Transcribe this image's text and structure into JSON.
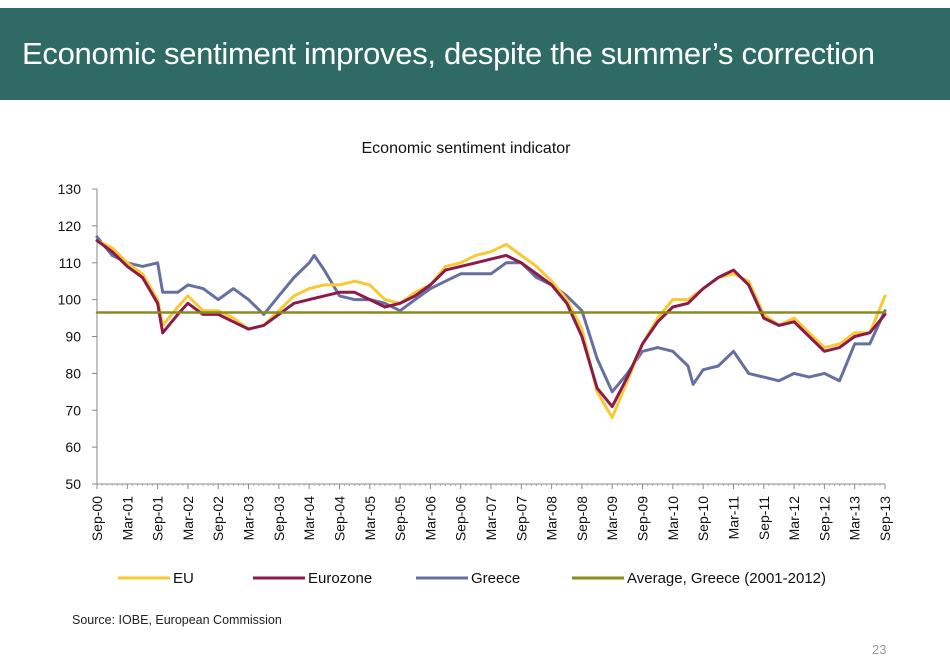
{
  "header": {
    "title": "Economic sentiment improves, despite the summer’s correction",
    "background": "#2f6b64"
  },
  "source": "Source: IOBE, European Commission",
  "page_number": "23",
  "chart_data": {
    "type": "line",
    "title": "Economic sentiment indicator",
    "xlabel": "",
    "ylabel": "",
    "ylim": [
      50,
      130
    ],
    "yticks": [
      50,
      60,
      70,
      80,
      90,
      100,
      110,
      120,
      130
    ],
    "grid": false,
    "legend_placement": "bottom",
    "x_start": "2000-09",
    "x_end": "2013-09",
    "x_ticks": [
      "Sep-00",
      "Mar-01",
      "Sep-01",
      "Mar-02",
      "Sep-02",
      "Mar-03",
      "Sep-03",
      "Mar-04",
      "Sep-04",
      "Mar-05",
      "Sep-05",
      "Mar-06",
      "Sep-06",
      "Mar-07",
      "Sep-07",
      "Mar-08",
      "Sep-08",
      "Mar-09",
      "Sep-09",
      "Mar-10",
      "Sep-10",
      "Mar-11",
      "Sep-11",
      "Mar-12",
      "Sep-12",
      "Mar-13",
      "Sep-13"
    ],
    "series": [
      {
        "name": "EU",
        "color": "#f9c832",
        "points": [
          [
            "2000-09",
            116
          ],
          [
            "2000-12",
            114
          ],
          [
            "2001-03",
            110
          ],
          [
            "2001-06",
            107
          ],
          [
            "2001-09",
            100
          ],
          [
            "2001-10",
            93
          ],
          [
            "2002-01",
            98
          ],
          [
            "2002-03",
            101
          ],
          [
            "2002-06",
            97
          ],
          [
            "2002-09",
            97
          ],
          [
            "2002-12",
            95
          ],
          [
            "2003-03",
            92
          ],
          [
            "2003-06",
            93
          ],
          [
            "2003-09",
            97
          ],
          [
            "2003-12",
            101
          ],
          [
            "2004-03",
            103
          ],
          [
            "2004-06",
            104
          ],
          [
            "2004-09",
            104
          ],
          [
            "2004-12",
            105
          ],
          [
            "2005-03",
            104
          ],
          [
            "2005-06",
            100
          ],
          [
            "2005-09",
            99
          ],
          [
            "2005-12",
            102
          ],
          [
            "2006-03",
            104
          ],
          [
            "2006-06",
            109
          ],
          [
            "2006-09",
            110
          ],
          [
            "2006-12",
            112
          ],
          [
            "2007-03",
            113
          ],
          [
            "2007-06",
            115
          ],
          [
            "2007-09",
            112
          ],
          [
            "2007-12",
            109
          ],
          [
            "2008-03",
            105
          ],
          [
            "2008-06",
            100
          ],
          [
            "2008-09",
            92
          ],
          [
            "2008-12",
            75
          ],
          [
            "2009-03",
            68
          ],
          [
            "2009-06",
            78
          ],
          [
            "2009-09",
            88
          ],
          [
            "2009-12",
            95
          ],
          [
            "2010-03",
            100
          ],
          [
            "2010-06",
            100
          ],
          [
            "2010-09",
            103
          ],
          [
            "2010-12",
            106
          ],
          [
            "2011-03",
            107
          ],
          [
            "2011-06",
            105
          ],
          [
            "2011-09",
            96
          ],
          [
            "2011-12",
            93
          ],
          [
            "2012-03",
            95
          ],
          [
            "2012-06",
            91
          ],
          [
            "2012-09",
            87
          ],
          [
            "2012-12",
            88
          ],
          [
            "2013-03",
            91
          ],
          [
            "2013-06",
            91
          ],
          [
            "2013-09",
            101
          ]
        ]
      },
      {
        "name": "Eurozone",
        "color": "#8c1a4a",
        "points": [
          [
            "2000-09",
            116
          ],
          [
            "2000-12",
            113
          ],
          [
            "2001-03",
            109
          ],
          [
            "2001-06",
            106
          ],
          [
            "2001-09",
            99
          ],
          [
            "2001-10",
            91
          ],
          [
            "2002-01",
            96
          ],
          [
            "2002-03",
            99
          ],
          [
            "2002-06",
            96
          ],
          [
            "2002-09",
            96
          ],
          [
            "2002-12",
            94
          ],
          [
            "2003-03",
            92
          ],
          [
            "2003-06",
            93
          ],
          [
            "2003-09",
            96
          ],
          [
            "2003-12",
            99
          ],
          [
            "2004-03",
            100
          ],
          [
            "2004-06",
            101
          ],
          [
            "2004-09",
            102
          ],
          [
            "2004-12",
            102
          ],
          [
            "2005-03",
            100
          ],
          [
            "2005-06",
            98
          ],
          [
            "2005-09",
            99
          ],
          [
            "2005-12",
            101
          ],
          [
            "2006-03",
            104
          ],
          [
            "2006-06",
            108
          ],
          [
            "2006-09",
            109
          ],
          [
            "2006-12",
            110
          ],
          [
            "2007-03",
            111
          ],
          [
            "2007-06",
            112
          ],
          [
            "2007-09",
            110
          ],
          [
            "2007-12",
            107
          ],
          [
            "2008-03",
            104
          ],
          [
            "2008-06",
            99
          ],
          [
            "2008-09",
            90
          ],
          [
            "2008-12",
            76
          ],
          [
            "2009-03",
            71
          ],
          [
            "2009-06",
            79
          ],
          [
            "2009-09",
            88
          ],
          [
            "2009-12",
            94
          ],
          [
            "2010-03",
            98
          ],
          [
            "2010-06",
            99
          ],
          [
            "2010-09",
            103
          ],
          [
            "2010-12",
            106
          ],
          [
            "2011-03",
            108
          ],
          [
            "2011-06",
            104
          ],
          [
            "2011-09",
            95
          ],
          [
            "2011-12",
            93
          ],
          [
            "2012-03",
            94
          ],
          [
            "2012-06",
            90
          ],
          [
            "2012-09",
            86
          ],
          [
            "2012-12",
            87
          ],
          [
            "2013-03",
            90
          ],
          [
            "2013-06",
            91
          ],
          [
            "2013-09",
            96
          ]
        ]
      },
      {
        "name": "Greece",
        "color": "#6670a0",
        "points": [
          [
            "2000-09",
            117
          ],
          [
            "2000-12",
            112
          ],
          [
            "2001-03",
            110
          ],
          [
            "2001-06",
            109
          ],
          [
            "2001-09",
            110
          ],
          [
            "2001-10",
            102
          ],
          [
            "2002-01",
            102
          ],
          [
            "2002-03",
            104
          ],
          [
            "2002-06",
            103
          ],
          [
            "2002-09",
            100
          ],
          [
            "2002-12",
            103
          ],
          [
            "2003-03",
            100
          ],
          [
            "2003-06",
            96
          ],
          [
            "2003-09",
            101
          ],
          [
            "2003-12",
            106
          ],
          [
            "2004-03",
            110
          ],
          [
            "2004-04",
            112
          ],
          [
            "2004-06",
            108
          ],
          [
            "2004-09",
            101
          ],
          [
            "2004-12",
            100
          ],
          [
            "2005-03",
            100
          ],
          [
            "2005-06",
            99
          ],
          [
            "2005-09",
            97
          ],
          [
            "2005-12",
            100
          ],
          [
            "2006-03",
            103
          ],
          [
            "2006-06",
            105
          ],
          [
            "2006-09",
            107
          ],
          [
            "2006-12",
            107
          ],
          [
            "2007-03",
            107
          ],
          [
            "2007-06",
            110
          ],
          [
            "2007-09",
            110
          ],
          [
            "2007-12",
            106
          ],
          [
            "2008-03",
            104
          ],
          [
            "2008-06",
            101
          ],
          [
            "2008-09",
            97
          ],
          [
            "2008-12",
            84
          ],
          [
            "2009-03",
            75
          ],
          [
            "2009-06",
            80
          ],
          [
            "2009-09",
            86
          ],
          [
            "2009-12",
            87
          ],
          [
            "2010-03",
            86
          ],
          [
            "2010-06",
            82
          ],
          [
            "2010-07",
            77
          ],
          [
            "2010-09",
            81
          ],
          [
            "2010-12",
            82
          ],
          [
            "2011-03",
            86
          ],
          [
            "2011-06",
            80
          ],
          [
            "2011-09",
            79
          ],
          [
            "2011-12",
            78
          ],
          [
            "2012-03",
            80
          ],
          [
            "2012-06",
            79
          ],
          [
            "2012-09",
            80
          ],
          [
            "2012-12",
            78
          ],
          [
            "2013-03",
            88
          ],
          [
            "2013-06",
            88
          ],
          [
            "2013-09",
            97
          ]
        ]
      },
      {
        "name": "Average, Greece (2001-2012)",
        "color": "#8a8a1f",
        "points": [
          [
            "2000-09",
            96.5
          ],
          [
            "2013-09",
            96.5
          ]
        ]
      }
    ]
  }
}
